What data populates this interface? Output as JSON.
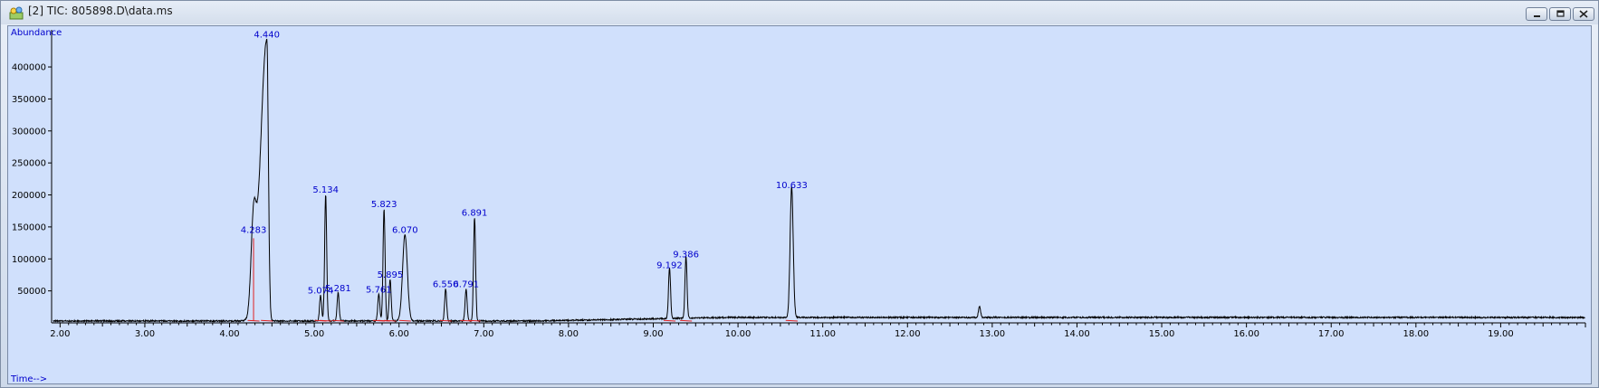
{
  "window": {
    "title": "[2] TIC: 805898.D\\data.ms",
    "icon": "chromatogram-app-icon",
    "controls": [
      "minimize-icon",
      "restore-icon",
      "close-icon"
    ]
  },
  "colors": {
    "plot_background": "#d0e0fc",
    "trace": "#000000",
    "baseline_marks": "#e02020",
    "peak_labels": "#0000cc",
    "axis_title": "#0000cc"
  },
  "chart_data": {
    "type": "line",
    "title": "",
    "ylabel": "Abundance",
    "xlabel": "Time-->",
    "xlim": [
      1.9,
      20.0
    ],
    "ylim": [
      0,
      458000
    ],
    "grid": false,
    "legend": "none",
    "y_ticks": [
      50000,
      100000,
      150000,
      200000,
      250000,
      300000,
      350000,
      400000
    ],
    "y_tick_labels": [
      "50000",
      "100000",
      "150000",
      "200000",
      "250000",
      "300000",
      "350000",
      "400000"
    ],
    "x_ticks": [
      2,
      3,
      4,
      5,
      6,
      7,
      8,
      9,
      10,
      11,
      12,
      13,
      14,
      15,
      16,
      17,
      18,
      19
    ],
    "x_tick_labels": [
      "2.00",
      "3.00",
      "4.00",
      "5.00",
      "6.00",
      "7.00",
      "8.00",
      "9.00",
      "10.00",
      "11.00",
      "12.00",
      "13.00",
      "14.00",
      "15.00",
      "16.00",
      "17.00",
      "18.00",
      "19.00"
    ],
    "baseline": 3000,
    "peaks": [
      {
        "rt": 4.283,
        "label": "4.283",
        "abundance": 135000
      },
      {
        "rt": 4.44,
        "label": "4.440",
        "abundance": 440000
      },
      {
        "rt": 5.074,
        "label": "5.074",
        "abundance": 40000
      },
      {
        "rt": 5.134,
        "label": "5.134",
        "abundance": 198000
      },
      {
        "rt": 5.281,
        "label": "5.281",
        "abundance": 44000
      },
      {
        "rt": 5.761,
        "label": "5.761",
        "abundance": 42000
      },
      {
        "rt": 5.823,
        "label": "5.823",
        "abundance": 175000
      },
      {
        "rt": 5.895,
        "label": "5.895",
        "abundance": 65000
      },
      {
        "rt": 6.07,
        "label": "6.070",
        "abundance": 135000
      },
      {
        "rt": 6.55,
        "label": "6.550",
        "abundance": 50000
      },
      {
        "rt": 6.791,
        "label": "6.791",
        "abundance": 50000
      },
      {
        "rt": 6.891,
        "label": "6.891",
        "abundance": 162000
      },
      {
        "rt": 9.192,
        "label": "9.192",
        "abundance": 80000
      },
      {
        "rt": 9.386,
        "label": "9.386",
        "abundance": 97000
      },
      {
        "rt": 10.633,
        "label": "10.633",
        "abundance": 205000
      },
      {
        "rt": 12.85,
        "label": "",
        "abundance": 18000
      }
    ]
  }
}
